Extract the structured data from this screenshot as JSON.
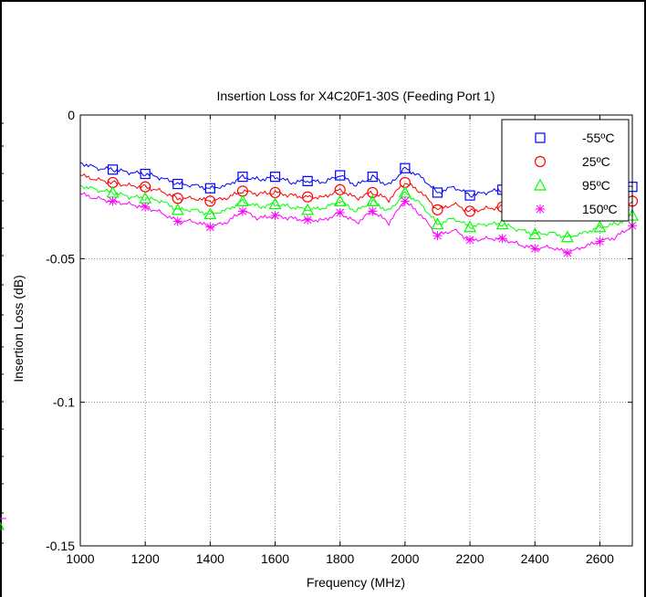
{
  "chart_data": {
    "type": "line",
    "title": "Insertion Loss for X4C20F1-30S (Feeding Port 1)",
    "xlabel": "Frequency (MHz)",
    "ylabel": "Insertion Loss (dB)",
    "xlim": [
      1000,
      2700
    ],
    "ylim": [
      -0.15,
      0
    ],
    "xticks": [
      1000,
      1200,
      1400,
      1600,
      1800,
      2000,
      2200,
      2400,
      2600
    ],
    "xtick_labels": [
      "1000",
      "1200",
      "1400",
      "1600",
      "1800",
      "2000",
      "2200",
      "2400",
      "2600"
    ],
    "yticks": [
      0,
      -0.05,
      -0.1,
      -0.15
    ],
    "ytick_labels": [
      "0",
      "-0.05",
      "-0.1",
      "-0.15"
    ],
    "grid": true,
    "legend_position": "top-right",
    "x": [
      1000,
      1050,
      1100,
      1150,
      1200,
      1250,
      1300,
      1350,
      1400,
      1450,
      1500,
      1550,
      1600,
      1650,
      1700,
      1750,
      1800,
      1850,
      1900,
      1950,
      2000,
      2050,
      2100,
      2150,
      2200,
      2250,
      2300,
      2350,
      2400,
      2450,
      2500,
      2550,
      2600,
      2650,
      2700
    ],
    "series": [
      {
        "name": "-55ºC",
        "color": "#0000ff",
        "marker": "square",
        "values": [
          -0.0165,
          -0.0185,
          -0.019,
          -0.02,
          -0.0205,
          -0.022,
          -0.024,
          -0.0245,
          -0.0255,
          -0.0245,
          -0.0215,
          -0.0225,
          -0.0215,
          -0.0235,
          -0.023,
          -0.0235,
          -0.021,
          -0.0245,
          -0.0215,
          -0.0245,
          -0.0185,
          -0.0215,
          -0.027,
          -0.025,
          -0.028,
          -0.027,
          -0.026,
          -0.028,
          -0.029,
          -0.029,
          -0.03,
          -0.029,
          -0.028,
          -0.027,
          -0.025
        ]
      },
      {
        "name": "25ºC",
        "color": "#ff0000",
        "marker": "circle",
        "values": [
          -0.021,
          -0.0225,
          -0.0235,
          -0.0245,
          -0.025,
          -0.0265,
          -0.029,
          -0.029,
          -0.03,
          -0.029,
          -0.0265,
          -0.0275,
          -0.027,
          -0.028,
          -0.0285,
          -0.0285,
          -0.026,
          -0.029,
          -0.027,
          -0.0295,
          -0.0235,
          -0.027,
          -0.033,
          -0.031,
          -0.0335,
          -0.0325,
          -0.032,
          -0.0335,
          -0.034,
          -0.034,
          -0.035,
          -0.034,
          -0.0325,
          -0.032,
          -0.03
        ]
      },
      {
        "name": "95ºC",
        "color": "#00ff00",
        "marker": "triangle",
        "values": [
          -0.0245,
          -0.026,
          -0.027,
          -0.0285,
          -0.029,
          -0.03,
          -0.033,
          -0.033,
          -0.0345,
          -0.033,
          -0.03,
          -0.032,
          -0.031,
          -0.032,
          -0.033,
          -0.0325,
          -0.03,
          -0.0335,
          -0.03,
          -0.0335,
          -0.027,
          -0.031,
          -0.038,
          -0.036,
          -0.039,
          -0.038,
          -0.038,
          -0.04,
          -0.0415,
          -0.041,
          -0.0425,
          -0.041,
          -0.039,
          -0.038,
          -0.035
        ]
      },
      {
        "name": "150ºC",
        "color": "#ff00ff",
        "marker": "asterisk",
        "values": [
          -0.0275,
          -0.029,
          -0.03,
          -0.031,
          -0.032,
          -0.034,
          -0.037,
          -0.037,
          -0.039,
          -0.0375,
          -0.0335,
          -0.036,
          -0.035,
          -0.036,
          -0.0365,
          -0.0365,
          -0.034,
          -0.0375,
          -0.0335,
          -0.0375,
          -0.03,
          -0.035,
          -0.042,
          -0.04,
          -0.0435,
          -0.043,
          -0.043,
          -0.045,
          -0.0465,
          -0.046,
          -0.048,
          -0.046,
          -0.044,
          -0.0425,
          -0.0385
        ]
      }
    ]
  }
}
